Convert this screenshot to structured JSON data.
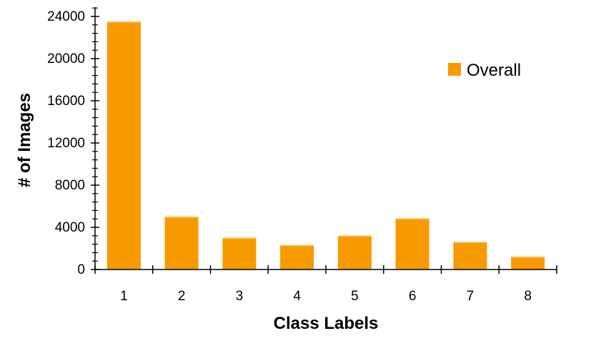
{
  "chart_data": {
    "type": "bar",
    "title": "",
    "xlabel": "Class Labels",
    "ylabel": "# of Images",
    "categories": [
      "1",
      "2",
      "3",
      "4",
      "5",
      "6",
      "7",
      "8"
    ],
    "series": [
      {
        "name": "Overall",
        "values": [
          23500,
          5000,
          3000,
          2300,
          3200,
          4850,
          2600,
          1200
        ]
      }
    ],
    "ylim": [
      0,
      24000
    ],
    "yticks": [
      "0",
      "4000",
      "8000",
      "12000",
      "16000",
      "20000",
      "24000"
    ],
    "grid": false,
    "legend_position": "top-right",
    "colors": {
      "bar": "#F79A00",
      "bar_shade": "#FCB02E",
      "axis": "#000000"
    }
  }
}
